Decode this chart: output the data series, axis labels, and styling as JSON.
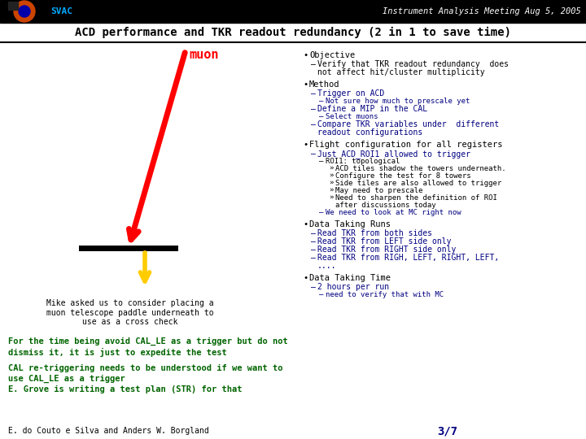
{
  "title_left": "SVAC",
  "title_right": "Instrument Analysis Meeting Aug 5, 2005",
  "subtitle": "ACD performance and TKR readout redundancy (2 in 1 to save time)",
  "bg_color": "#ffffff",
  "green_text_color": "#006400",
  "page_number": "3/7",
  "footer_text": "E. do Couto e Silva and Anders W. Borgland",
  "diagram_label": "muon",
  "diagram_caption": "Mike asked us to consider placing a\nmuon telescope paddle underneath to\nuse as a cross check",
  "green_block1": "For the time being avoid CAL_LE as a trigger but do not\ndismiss it, it is just to expedite the test",
  "green_block2": "CAL re-triggering needs to be understood if we want to\nuse CAL_LE as a trigger\nE. Grove is writing a test plan (STR) for that",
  "right_bullets": [
    {
      "level": 0,
      "text": "Objective",
      "color": "#000000"
    },
    {
      "level": 1,
      "text": "Verify that TKR readout redundancy  does not affect hit/cluster multiplicity",
      "color": "#000000",
      "wrap": true
    },
    {
      "level": 0,
      "text": "Method",
      "color": "#000000"
    },
    {
      "level": 1,
      "text": "Trigger on ACD",
      "color": "#000080"
    },
    {
      "level": 2,
      "text": "Not sure how much to prescale yet",
      "color": "#000080"
    },
    {
      "level": 1,
      "text": "Define a MIP in the CAL",
      "color": "#000080"
    },
    {
      "level": 2,
      "text": "Select muons",
      "color": "#000080"
    },
    {
      "level": 1,
      "text": "Compare TKR variables under  different readout configurations",
      "color": "#000080",
      "wrap": true
    },
    {
      "level": 0,
      "text": "Flight configuration for all registers",
      "color": "#000000"
    },
    {
      "level": 1,
      "text": "Just ACD_ROI1 allowed to trigger",
      "color": "#000080"
    },
    {
      "level": 2,
      "text": "ROI1: topological",
      "color": "#000000"
    },
    {
      "level": 3,
      "text": "ACD tiles shadow the towers underneath.",
      "color": "#000000",
      "wrap": true
    },
    {
      "level": 3,
      "text": "Configure the test for 8 towers",
      "color": "#000000"
    },
    {
      "level": 3,
      "text": "Side tiles are also allowed to trigger",
      "color": "#000000",
      "wrap": true
    },
    {
      "level": 3,
      "text": "May need to prescale",
      "color": "#000000"
    },
    {
      "level": 3,
      "text": "Need to sharpen the definition of ROI after discussions today",
      "color": "#000000",
      "wrap": true
    },
    {
      "level": 2,
      "text": "We need to look at MC right now",
      "color": "#000080"
    },
    {
      "level": 0,
      "text": "Data Taking Runs",
      "color": "#000000"
    },
    {
      "level": 1,
      "text": "Read TKR from both sides",
      "color": "#000080"
    },
    {
      "level": 1,
      "text": "Read TKR from LEFT side only",
      "color": "#000080"
    },
    {
      "level": 1,
      "text": "Read TKR from RIGHT side only",
      "color": "#000080"
    },
    {
      "level": 1,
      "text": "Read TKR from RIGH, LEFT, RIGHT, LEFT, ....",
      "color": "#000080"
    },
    {
      "level": 0,
      "text": "Data Taking Time",
      "color": "#000000"
    },
    {
      "level": 1,
      "text": "2 hours per run",
      "color": "#000080"
    },
    {
      "level": 2,
      "text": "need to verify that with MC",
      "color": "#000080"
    }
  ]
}
